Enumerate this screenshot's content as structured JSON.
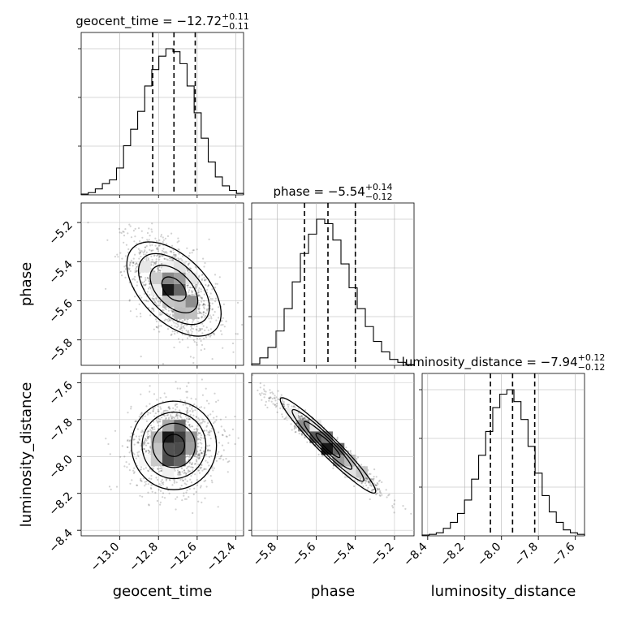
{
  "figure_title": "",
  "chart_data": {
    "type": "corner",
    "parameters": [
      {
        "name": "geocent_time",
        "axis_label": "geocent_time",
        "title_main": "geocent_time = −12.72",
        "title_sup": "+0.11",
        "title_sub": "−0.11",
        "range": [
          -13.2,
          -12.36
        ],
        "ticks": [
          -13.0,
          -12.8,
          -12.6,
          -12.4
        ],
        "tick_labels": [
          "−13.0",
          "−12.8",
          "−12.6",
          "−12.4"
        ],
        "median": -12.72,
        "quantiles": [
          -12.83,
          -12.61
        ],
        "hist": [
          0.5,
          1.5,
          4,
          7.5,
          10,
          18,
          33,
          44,
          56,
          73,
          84,
          93,
          98,
          96,
          88,
          73,
          55,
          38,
          22,
          12,
          6,
          3,
          1
        ]
      },
      {
        "name": "phase",
        "axis_label": "phase",
        "title_main": "phase = −5.54",
        "title_sup": "+0.14",
        "title_sub": "−0.12",
        "range": [
          -5.93,
          -5.1
        ],
        "ticks": [
          -5.8,
          -5.6,
          -5.4,
          -5.2
        ],
        "tick_labels": [
          "−5.8",
          "−5.6",
          "−5.4",
          "−5.2"
        ],
        "median": -5.54,
        "quantiles": [
          -5.66,
          -5.4
        ],
        "hist": [
          1,
          5,
          12,
          23,
          38,
          56,
          75,
          88,
          98,
          95,
          84,
          68,
          52,
          38,
          26,
          16,
          9,
          4,
          2,
          0.5
        ]
      },
      {
        "name": "luminosity_distance",
        "axis_label": "luminosity_distance",
        "title_main": "luminosity_distance = −7.94",
        "title_sup": "+0.12",
        "title_sub": "−0.12",
        "range": [
          -8.43,
          -7.55
        ],
        "ticks": [
          -8.4,
          -8.2,
          -8.0,
          -7.8,
          -7.6
        ],
        "tick_labels": [
          "−8.4",
          "−8.2",
          "−8.0",
          "−7.8",
          "−7.6"
        ],
        "median": -7.94,
        "quantiles": [
          -8.06,
          -7.82
        ],
        "hist": [
          0.5,
          1,
          2,
          5,
          9,
          15,
          24,
          38,
          54,
          70,
          86,
          95,
          98,
          90,
          78,
          60,
          42,
          27,
          16,
          9,
          4,
          2,
          1
        ]
      }
    ]
  }
}
